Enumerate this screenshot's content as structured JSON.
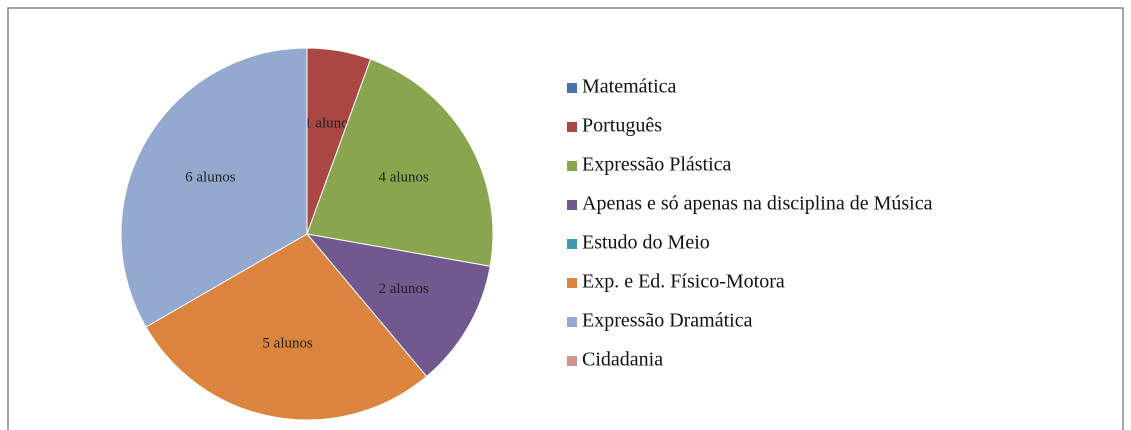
{
  "chart_data": {
    "type": "pie",
    "categories": [
      "Matemática",
      "Português",
      "Expressão Plástica",
      "Apenas e só apenas na disciplina de Música",
      "Estudo do Meio",
      "Exp. e Ed. Físico-Motora",
      "Expressão Dramática",
      "Cidadania"
    ],
    "values": [
      0,
      1,
      4,
      2,
      0,
      5,
      6,
      0
    ],
    "value_labels": [
      null,
      "1 aluno",
      "4 alunos",
      "2 alunos",
      null,
      "5 alunos",
      "6 alunos",
      null
    ],
    "colors": [
      "#4572A7",
      "#AA4643",
      "#89A54E",
      "#71588F",
      "#4198AF",
      "#DB843D",
      "#93A9CF",
      "#D19392"
    ],
    "legend": "right"
  }
}
